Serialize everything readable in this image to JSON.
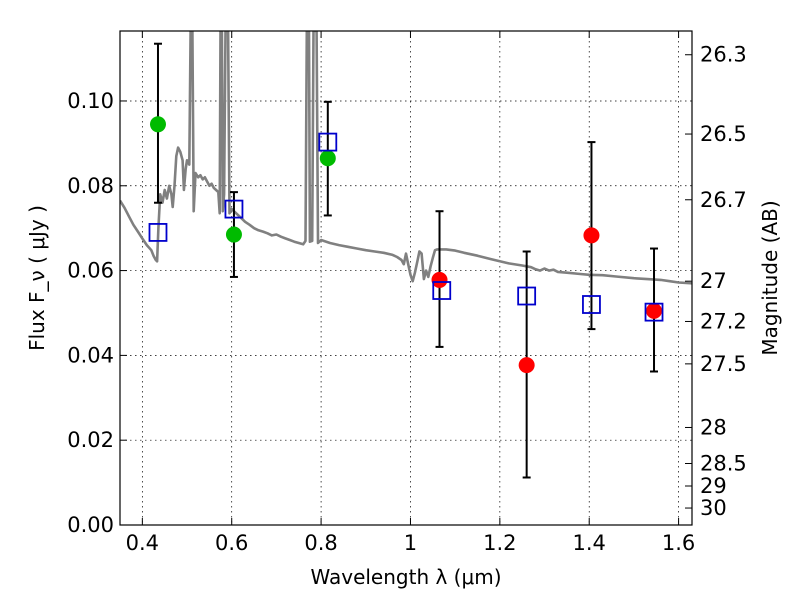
{
  "chart_data": {
    "type": "scatter",
    "xlabel": "Wavelength  λ (μm)",
    "ylabel": "Flux  F_ν  ( μJy )",
    "y2label": "Magnitude (AB)",
    "xlim": [
      0.35,
      1.63
    ],
    "ylim": [
      0.0,
      0.1165
    ],
    "grid": true,
    "x_ticks": [
      {
        "v": 0.4,
        "label": "0.4"
      },
      {
        "v": 0.6,
        "label": "0.6"
      },
      {
        "v": 0.8,
        "label": "0.8"
      },
      {
        "v": 1.0,
        "label": "1"
      },
      {
        "v": 1.2,
        "label": "1.2"
      },
      {
        "v": 1.4,
        "label": "1.4"
      },
      {
        "v": 1.6,
        "label": "1.6"
      }
    ],
    "y_ticks": [
      {
        "v": 0.0,
        "label": "0.00"
      },
      {
        "v": 0.02,
        "label": "0.02"
      },
      {
        "v": 0.04,
        "label": "0.04"
      },
      {
        "v": 0.06,
        "label": "0.06"
      },
      {
        "v": 0.08,
        "label": "0.08"
      },
      {
        "v": 0.1,
        "label": "0.10"
      }
    ],
    "mag_ticks": [
      {
        "flux": 0.1109,
        "label": "26.3"
      },
      {
        "flux": 0.0922,
        "label": "26.5"
      },
      {
        "flux": 0.0767,
        "label": "26.7"
      },
      {
        "flux": 0.0575,
        "label": "27"
      },
      {
        "flux": 0.048,
        "label": "27.2"
      },
      {
        "flux": 0.038,
        "label": "27.5"
      },
      {
        "flux": 0.023,
        "label": "28"
      },
      {
        "flux": 0.0145,
        "label": "28.5"
      },
      {
        "flux": 0.0092,
        "label": "29"
      },
      {
        "flux": 0.004,
        "label": "30"
      }
    ],
    "series": [
      {
        "kind": "model_sed",
        "color": "#808080",
        "points": [
          [
            0.35,
            0.0765
          ],
          [
            0.36,
            0.0748
          ],
          [
            0.37,
            0.0728
          ],
          [
            0.38,
            0.0708
          ],
          [
            0.39,
            0.0692
          ],
          [
            0.4,
            0.0676
          ],
          [
            0.41,
            0.066
          ],
          [
            0.42,
            0.0648
          ],
          [
            0.425,
            0.0635
          ],
          [
            0.43,
            0.0625
          ],
          [
            0.433,
            0.0622
          ],
          [
            0.436,
            0.07
          ],
          [
            0.44,
            0.078
          ],
          [
            0.445,
            0.076
          ],
          [
            0.45,
            0.079
          ],
          [
            0.455,
            0.077
          ],
          [
            0.46,
            0.08
          ],
          [
            0.465,
            0.078
          ],
          [
            0.468,
            0.075
          ],
          [
            0.472,
            0.08
          ],
          [
            0.476,
            0.087
          ],
          [
            0.48,
            0.089
          ],
          [
            0.485,
            0.088
          ],
          [
            0.49,
            0.086
          ],
          [
            0.493,
            0.079
          ],
          [
            0.497,
            0.084
          ],
          [
            0.5,
            0.086
          ],
          [
            0.505,
            0.085
          ],
          [
            0.508,
            0.1165
          ],
          [
            0.512,
            0.1165
          ],
          [
            0.515,
            0.074
          ],
          [
            0.519,
            0.083
          ],
          [
            0.525,
            0.082
          ],
          [
            0.53,
            0.0825
          ],
          [
            0.535,
            0.0815
          ],
          [
            0.54,
            0.082
          ],
          [
            0.545,
            0.081
          ],
          [
            0.55,
            0.08
          ],
          [
            0.555,
            0.0805
          ],
          [
            0.56,
            0.0795
          ],
          [
            0.565,
            0.079
          ],
          [
            0.57,
            0.0785
          ],
          [
            0.573,
            0.0735
          ],
          [
            0.575,
            0.1165
          ],
          [
            0.578,
            0.1165
          ],
          [
            0.58,
            0.074
          ],
          [
            0.583,
            0.078
          ],
          [
            0.586,
            0.1165
          ],
          [
            0.592,
            0.1165
          ],
          [
            0.595,
            0.0735
          ],
          [
            0.6,
            0.0745
          ],
          [
            0.61,
            0.0735
          ],
          [
            0.62,
            0.0725
          ],
          [
            0.63,
            0.0715
          ],
          [
            0.64,
            0.0708
          ],
          [
            0.65,
            0.07
          ],
          [
            0.66,
            0.0695
          ],
          [
            0.67,
            0.0692
          ],
          [
            0.68,
            0.0688
          ],
          [
            0.69,
            0.0683
          ],
          [
            0.7,
            0.0685
          ],
          [
            0.71,
            0.068
          ],
          [
            0.72,
            0.0676
          ],
          [
            0.73,
            0.0672
          ],
          [
            0.74,
            0.0668
          ],
          [
            0.75,
            0.0665
          ],
          [
            0.76,
            0.0662
          ],
          [
            0.765,
            0.067
          ],
          [
            0.768,
            0.1165
          ],
          [
            0.773,
            0.1165
          ],
          [
            0.775,
            0.0668
          ],
          [
            0.78,
            0.067
          ],
          [
            0.783,
            0.1165
          ],
          [
            0.79,
            0.1165
          ],
          [
            0.793,
            0.0665
          ],
          [
            0.8,
            0.0672
          ],
          [
            0.82,
            0.0665
          ],
          [
            0.84,
            0.066
          ],
          [
            0.86,
            0.0656
          ],
          [
            0.88,
            0.0652
          ],
          [
            0.9,
            0.0648
          ],
          [
            0.92,
            0.0645
          ],
          [
            0.94,
            0.0642
          ],
          [
            0.96,
            0.0637
          ],
          [
            0.97,
            0.0632
          ],
          [
            0.98,
            0.0625
          ],
          [
            0.985,
            0.0615
          ],
          [
            0.99,
            0.064
          ],
          [
            0.995,
            0.0615
          ],
          [
            1.0,
            0.059
          ],
          [
            1.005,
            0.0575
          ],
          [
            1.01,
            0.0595
          ],
          [
            1.015,
            0.062
          ],
          [
            1.02,
            0.0645
          ],
          [
            1.025,
            0.064
          ],
          [
            1.03,
            0.058
          ],
          [
            1.035,
            0.06
          ],
          [
            1.04,
            0.0585
          ],
          [
            1.045,
            0.061
          ],
          [
            1.05,
            0.063
          ],
          [
            1.055,
            0.0648
          ],
          [
            1.06,
            0.065
          ],
          [
            1.08,
            0.065
          ],
          [
            1.1,
            0.0647
          ],
          [
            1.12,
            0.0642
          ],
          [
            1.15,
            0.0635
          ],
          [
            1.18,
            0.0627
          ],
          [
            1.2,
            0.0622
          ],
          [
            1.22,
            0.0617
          ],
          [
            1.25,
            0.0612
          ],
          [
            1.27,
            0.0608
          ],
          [
            1.28,
            0.0603
          ],
          [
            1.29,
            0.06
          ],
          [
            1.3,
            0.0605
          ],
          [
            1.31,
            0.06
          ],
          [
            1.32,
            0.0602
          ],
          [
            1.33,
            0.0597
          ],
          [
            1.35,
            0.0595
          ],
          [
            1.38,
            0.0592
          ],
          [
            1.4,
            0.059
          ],
          [
            1.43,
            0.0589
          ],
          [
            1.46,
            0.0586
          ],
          [
            1.5,
            0.0582
          ],
          [
            1.53,
            0.058
          ],
          [
            1.56,
            0.0578
          ],
          [
            1.58,
            0.0575
          ],
          [
            1.6,
            0.0572
          ],
          [
            1.63,
            0.057
          ]
        ]
      },
      {
        "kind": "observed_points",
        "color": "#00bb00",
        "points": [
          {
            "x": 0.435,
            "y": 0.0945,
            "err_lo": 0.076,
            "err_hi": 0.1135
          },
          {
            "x": 0.605,
            "y": 0.0685,
            "err_lo": 0.0585,
            "err_hi": 0.0785
          },
          {
            "x": 0.815,
            "y": 0.0865,
            "err_lo": 0.073,
            "err_hi": 0.0998
          }
        ]
      },
      {
        "kind": "observed_points",
        "color": "#ff0000",
        "points": [
          {
            "x": 1.065,
            "y": 0.0578,
            "err_lo": 0.042,
            "err_hi": 0.074
          },
          {
            "x": 1.26,
            "y": 0.0377,
            "err_lo": 0.0112,
            "err_hi": 0.0645
          },
          {
            "x": 1.405,
            "y": 0.0683,
            "err_lo": 0.0462,
            "err_hi": 0.0903
          },
          {
            "x": 1.545,
            "y": 0.0505,
            "err_lo": 0.0362,
            "err_hi": 0.0652
          }
        ]
      },
      {
        "kind": "model_photometry",
        "color": "#0000cc",
        "points": [
          {
            "x": 0.435,
            "y": 0.069
          },
          {
            "x": 0.605,
            "y": 0.0745
          },
          {
            "x": 0.815,
            "y": 0.0903
          },
          {
            "x": 1.07,
            "y": 0.0553
          },
          {
            "x": 1.26,
            "y": 0.054
          },
          {
            "x": 1.405,
            "y": 0.052
          },
          {
            "x": 1.545,
            "y": 0.0502
          }
        ]
      }
    ]
  }
}
